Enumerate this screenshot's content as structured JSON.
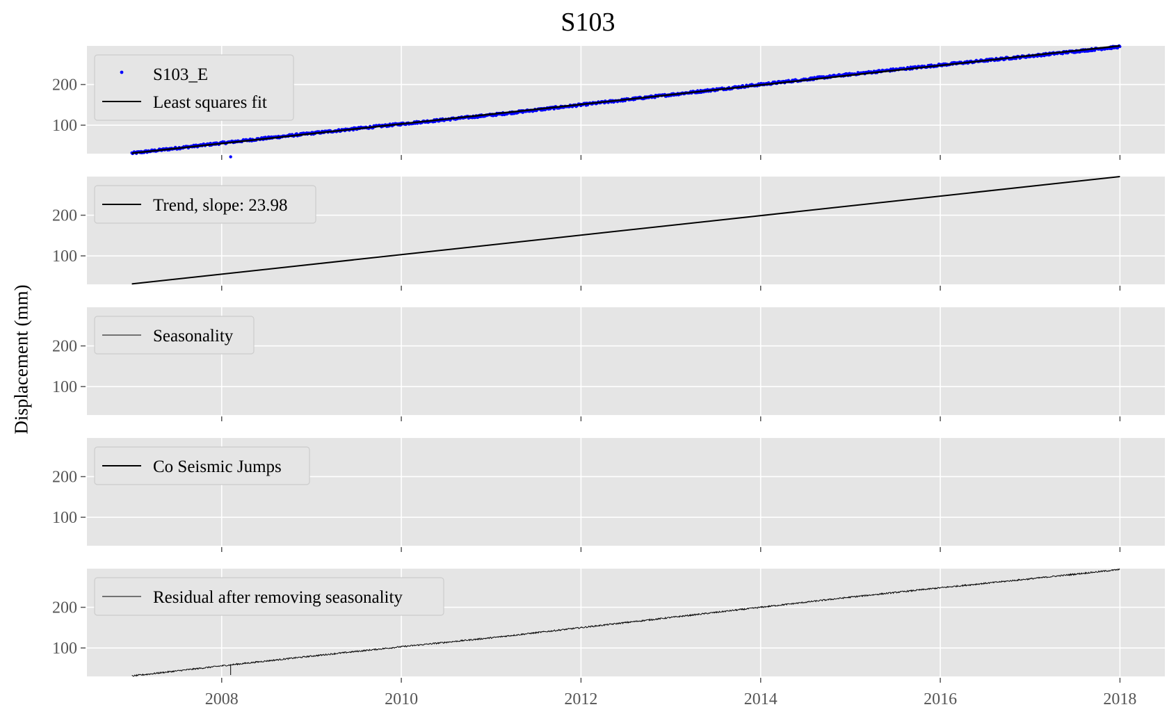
{
  "figure": {
    "title": "S103",
    "ylabel": "Displacement (mm)"
  },
  "colors": {
    "panel_background": "#e5e5e5",
    "grid": "#ffffff",
    "observations": "#0000ff",
    "lines": "#000000",
    "tick_text": "#555555"
  },
  "chart_data": [
    {
      "type": "scatter",
      "title": "S103",
      "ylabel": "",
      "xlim": [
        2006.5,
        2018.5
      ],
      "ylim": [
        30,
        295
      ],
      "yticks": [
        100,
        200
      ],
      "xticks": [
        2008,
        2010,
        2012,
        2014,
        2016,
        2018
      ],
      "xticklabels_visible": false,
      "grid": true,
      "legend_loc": "upper-left",
      "series": [
        {
          "name": "S103_E",
          "kind": "points",
          "color": "#0000ff",
          "x": [
            2007.0,
            2008.0,
            2009.0,
            2010.0,
            2011.0,
            2012.0,
            2013.0,
            2014.0,
            2015.0,
            2016.0,
            2017.0,
            2018.0
          ],
          "y": [
            31,
            56,
            80,
            103,
            125,
            150,
            175,
            200,
            225,
            248,
            270,
            293
          ],
          "outliers": {
            "x": [
              2008.1
            ],
            "y": [
              29
            ]
          }
        },
        {
          "name": "Least squares fit",
          "kind": "line",
          "color": "#000000",
          "x": [
            2007.0,
            2008.0,
            2009.0,
            2010.0,
            2011.0,
            2012.0,
            2013.0,
            2014.0,
            2015.0,
            2016.0,
            2017.0,
            2018.0
          ],
          "y": [
            31,
            55,
            79,
            103,
            127,
            151,
            175,
            199,
            223,
            247,
            271,
            295
          ]
        }
      ]
    },
    {
      "type": "line",
      "ylabel": "",
      "xlim": [
        2006.5,
        2018.5
      ],
      "ylim": [
        30,
        295
      ],
      "yticks": [
        100,
        200
      ],
      "xticks": [
        2008,
        2010,
        2012,
        2014,
        2016,
        2018
      ],
      "xticklabels_visible": false,
      "grid": true,
      "legend_loc": "upper-left",
      "series": [
        {
          "name": "Trend, slope: 23.98",
          "kind": "line",
          "color": "#000000",
          "x": [
            2007.0,
            2018.0
          ],
          "y": [
            31,
            295
          ]
        }
      ]
    },
    {
      "type": "line",
      "ylabel": "",
      "xlim": [
        2006.5,
        2018.5
      ],
      "ylim": [
        30,
        295
      ],
      "yticks": [
        100,
        200
      ],
      "xticks": [
        2008,
        2010,
        2012,
        2014,
        2016,
        2018
      ],
      "xticklabels_visible": false,
      "grid": true,
      "legend_loc": "upper-left",
      "series": [
        {
          "name": "Seasonality",
          "kind": "line",
          "thin": true,
          "color": "#000000",
          "x": [],
          "y": []
        }
      ]
    },
    {
      "type": "line",
      "ylabel": "",
      "xlim": [
        2006.5,
        2018.5
      ],
      "ylim": [
        30,
        295
      ],
      "yticks": [
        100,
        200
      ],
      "xticks": [
        2008,
        2010,
        2012,
        2014,
        2016,
        2018
      ],
      "xticklabels_visible": false,
      "grid": true,
      "legend_loc": "upper-left",
      "series": [
        {
          "name": "Co Seismic Jumps",
          "kind": "line",
          "color": "#000000",
          "x": [],
          "y": []
        }
      ]
    },
    {
      "type": "line",
      "ylabel": "",
      "xlabel": "",
      "xlim": [
        2006.5,
        2018.5
      ],
      "ylim": [
        30,
        295
      ],
      "yticks": [
        100,
        200
      ],
      "xticks": [
        2008,
        2010,
        2012,
        2014,
        2016,
        2018
      ],
      "xticklabels_visible": true,
      "grid": true,
      "legend_loc": "upper-left",
      "series": [
        {
          "name": "Residual after removing seasonality",
          "kind": "line",
          "thin": true,
          "color": "#000000",
          "x": [
            2007.0,
            2008.0,
            2009.0,
            2010.0,
            2011.0,
            2012.0,
            2013.0,
            2014.0,
            2015.0,
            2016.0,
            2017.0,
            2018.0
          ],
          "y": [
            31,
            56,
            80,
            103,
            125,
            150,
            175,
            200,
            225,
            248,
            270,
            293
          ]
        }
      ]
    }
  ]
}
